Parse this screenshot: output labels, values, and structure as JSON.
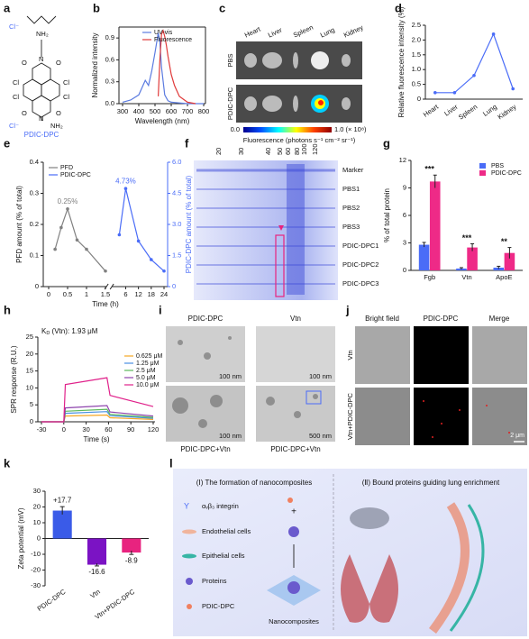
{
  "panel_labels": [
    "a",
    "b",
    "c",
    "d",
    "e",
    "f",
    "g",
    "h",
    "i",
    "j",
    "k",
    "l"
  ],
  "panel_a": {
    "atoms": [
      "Cl⁻",
      "NH₂",
      "N",
      "O",
      "O",
      "Cl",
      "Cl",
      "Cl",
      "Cl",
      "O",
      "O",
      "N",
      "NH₂",
      "Cl⁻"
    ],
    "name": "PDIC-DPC"
  },
  "panel_c": {
    "organs": [
      "Heart",
      "Liver",
      "Spleen",
      "Lung",
      "Kidney"
    ],
    "rows": [
      "PBS",
      "PDIC-DPC"
    ],
    "scale_min": "0.0",
    "scale_max": "1.0 (× 10⁸)",
    "scale_label": "Fluorescence (photons s⁻¹ cm⁻² sr⁻¹)"
  },
  "panel_f": {
    "sizes": [
      "20",
      "30",
      "40",
      "50",
      "60",
      "80",
      "100",
      "120"
    ],
    "lanes": [
      "Marker",
      "PBS1",
      "PBS2",
      "PBS3",
      "PDIC-DPC1",
      "PDIC-DPC2",
      "PDIC-DPC3"
    ]
  },
  "panel_i": {
    "titles": [
      "PDIC-DPC",
      "Vtn"
    ],
    "bottom": [
      "PDIC-DPC+Vtn",
      "PDIC-DPC+Vtn"
    ],
    "scales": [
      "100 nm",
      "100 nm",
      "100 nm",
      "500 nm"
    ]
  },
  "panel_j": {
    "columns": [
      "Bright field",
      "PDIC-DPC",
      "Merge"
    ],
    "rows": [
      "Vtn",
      "Vtn+PDIC-DPC"
    ],
    "scale": "2 μm"
  },
  "panel_l": {
    "title_1": "(Ⅰ) The formation of nanocomposites",
    "title_2": "(Ⅱ) Bound proteins guiding lung enrichment",
    "legend": [
      "αᵥβ₃ integrin",
      "Endothelial cells",
      "Epithelial cells",
      "Proteins",
      "PDIC-DPC"
    ],
    "plus": "+",
    "product": "Nanocomposites"
  },
  "chart_data": [
    {
      "type": "line",
      "ylabel": "Normalized intensity",
      "xlabel": "Wavelength (nm)",
      "xlim": [
        300,
        800
      ],
      "xticks": [
        300,
        400,
        500,
        600,
        700,
        800
      ],
      "ylim": [
        0,
        1.05
      ],
      "yticks": [
        {
          "value": 0,
          "label": "0.0"
        },
        0.3,
        0.6,
        0.9
      ],
      "legend": "upper center",
      "series": [
        {
          "name": "UV-vis",
          "color": "#5b7be0",
          "x": [
            300,
            350,
            400,
            420,
            440,
            460,
            480,
            500,
            520,
            530,
            540,
            560,
            580,
            600,
            650,
            700,
            800
          ],
          "values": [
            0.02,
            0.05,
            0.12,
            0.22,
            0.32,
            0.25,
            0.45,
            0.7,
            0.97,
            0.85,
            0.5,
            0.12,
            0.04,
            0.02,
            0.01,
            0,
            0
          ]
        },
        {
          "name": "Fluorescence",
          "color": "#e03a3a",
          "x": [
            520,
            530,
            540,
            550,
            560,
            570,
            580,
            600,
            620,
            650,
            700,
            750
          ],
          "values": [
            0.1,
            0.6,
            0.95,
            1.0,
            0.92,
            0.8,
            0.65,
            0.4,
            0.25,
            0.1,
            0.02,
            0
          ]
        }
      ]
    },
    {
      "type": "line",
      "ylabel": "Relative fluorescence intensity (%)",
      "markers": true,
      "categories": [
        "Heart",
        "Liver",
        "Spleen",
        "Lung",
        "Kidney"
      ],
      "ylim": [
        0,
        2.5
      ],
      "yticks": [
        0,
        0.5,
        {
          "value": 1,
          "label": "1.0"
        },
        1.5,
        {
          "value": 2,
          "label": "2.0"
        },
        2.5
      ],
      "series": [
        {
          "name": null,
          "color": "#4a6cf7",
          "values": [
            0.22,
            0.22,
            0.8,
            2.2,
            0.35
          ]
        }
      ]
    },
    {
      "type": "line",
      "ylabel": "PFD amount (% of total)",
      "y2label": "PDIC-DPC amount (% of total)",
      "xlabel": "Time (h)",
      "markers": true,
      "legend": "upper left",
      "xlim": [
        0,
        24
      ],
      "xticks": [
        0,
        0.5,
        1,
        1.5,
        6,
        12,
        18,
        24
      ],
      "ylim": [
        0,
        0.4
      ],
      "yticks": [
        0,
        0.1,
        0.2,
        0.3,
        0.4
      ],
      "y2lim": [
        0,
        6
      ],
      "y2ticks": [
        0,
        1.5,
        {
          "value": 3,
          "label": "3.0"
        },
        4.5,
        {
          "value": 6,
          "label": "6.0"
        }
      ],
      "series": [
        {
          "name": "PFD",
          "color": "#808080",
          "x": [
            0.17,
            0.33,
            0.5,
            0.75,
            1,
            1.5
          ],
          "values": [
            0.12,
            0.19,
            0.25,
            0.15,
            0.12,
            0.05
          ],
          "value_labels": [
            null,
            null,
            "0.25%",
            null,
            null,
            null
          ]
        },
        {
          "name": "PDIC-DPC",
          "color": "#4a6cf7",
          "axis": "y2",
          "x": [
            3,
            6,
            12,
            18,
            24
          ],
          "values": [
            2.5,
            4.73,
            2.2,
            1.3,
            0.75
          ],
          "value_labels": [
            null,
            "4.73%",
            null,
            null,
            null
          ]
        }
      ]
    },
    {
      "type": "bar",
      "ylabel": "% of total protein",
      "legend": "upper right",
      "categories": [
        "Fgb",
        "Vtn",
        "ApoE"
      ],
      "ylim": [
        0,
        12
      ],
      "yticks": [
        0,
        3,
        6,
        9,
        12
      ],
      "significance": [
        "***",
        "***",
        "**"
      ],
      "series": [
        {
          "name": "PBS",
          "color": "#4a6cf7",
          "values": [
            2.8,
            0.2,
            0.3
          ],
          "errors": [
            0.25,
            0.1,
            0.15
          ]
        },
        {
          "name": "PDIC-DPC",
          "color": "#ee2a87",
          "values": [
            9.7,
            2.5,
            1.9
          ],
          "errors": [
            0.7,
            0.4,
            0.6
          ]
        }
      ]
    },
    {
      "type": "line",
      "ylabel": "SPR response (R.U.)",
      "xlabel": "Time (s)",
      "legend": "right",
      "kd_label": {
        "main": "K",
        "sub": "D",
        "rest": " (Vtn): 1.93 μM"
      },
      "xlim": [
        -30,
        120
      ],
      "xticks": [
        -30,
        0,
        30,
        60,
        90,
        120
      ],
      "ylim": [
        0,
        25
      ],
      "yticks": [
        0,
        5,
        10,
        15,
        20,
        25
      ],
      "series": [
        {
          "name": "0.625 μM",
          "color": "#f5a623",
          "x": [
            -30,
            0,
            2,
            58,
            62,
            120
          ],
          "values": [
            0,
            0,
            1.7,
            2.0,
            1.2,
            0.7
          ]
        },
        {
          "name": "1.25 μM",
          "color": "#4a90e2",
          "x": [
            -30,
            0,
            2,
            58,
            62,
            120
          ],
          "values": [
            0,
            0,
            2.5,
            3.0,
            1.8,
            1.05
          ]
        },
        {
          "name": "2.5 μM",
          "color": "#5cb85c",
          "x": [
            -30,
            0,
            2,
            58,
            62,
            120
          ],
          "values": [
            0,
            0,
            3.1,
            3.7,
            2.2,
            1.3
          ]
        },
        {
          "name": "5.0 μM",
          "color": "#8e44ad",
          "x": [
            -30,
            0,
            2,
            58,
            62,
            120
          ],
          "values": [
            0,
            0,
            4.1,
            4.8,
            2.9,
            1.7
          ]
        },
        {
          "name": "10.0 μM",
          "color": "#e0218a",
          "x": [
            -30,
            0,
            2,
            58,
            62,
            120
          ],
          "values": [
            0,
            0,
            11.0,
            13.0,
            7.8,
            4.5
          ]
        }
      ]
    },
    {
      "type": "bar",
      "ylabel": "Zeta potential (mV)",
      "categories": [
        "PDIC-DPC",
        "Vtn",
        "Vtn+PDIC-DPC"
      ],
      "values": [
        17.7,
        -16.6,
        -8.9
      ],
      "errors": [
        2.5,
        0.8,
        1.2
      ],
      "value_labels": [
        "+17.7",
        "-16.6",
        "-8.9"
      ],
      "colors": [
        "#3a5be8",
        "#7b13c4",
        "#e8237f"
      ],
      "ylim": [
        -30,
        30
      ],
      "yticks": [
        -30,
        -20,
        -10,
        0,
        10,
        20,
        30
      ]
    }
  ]
}
